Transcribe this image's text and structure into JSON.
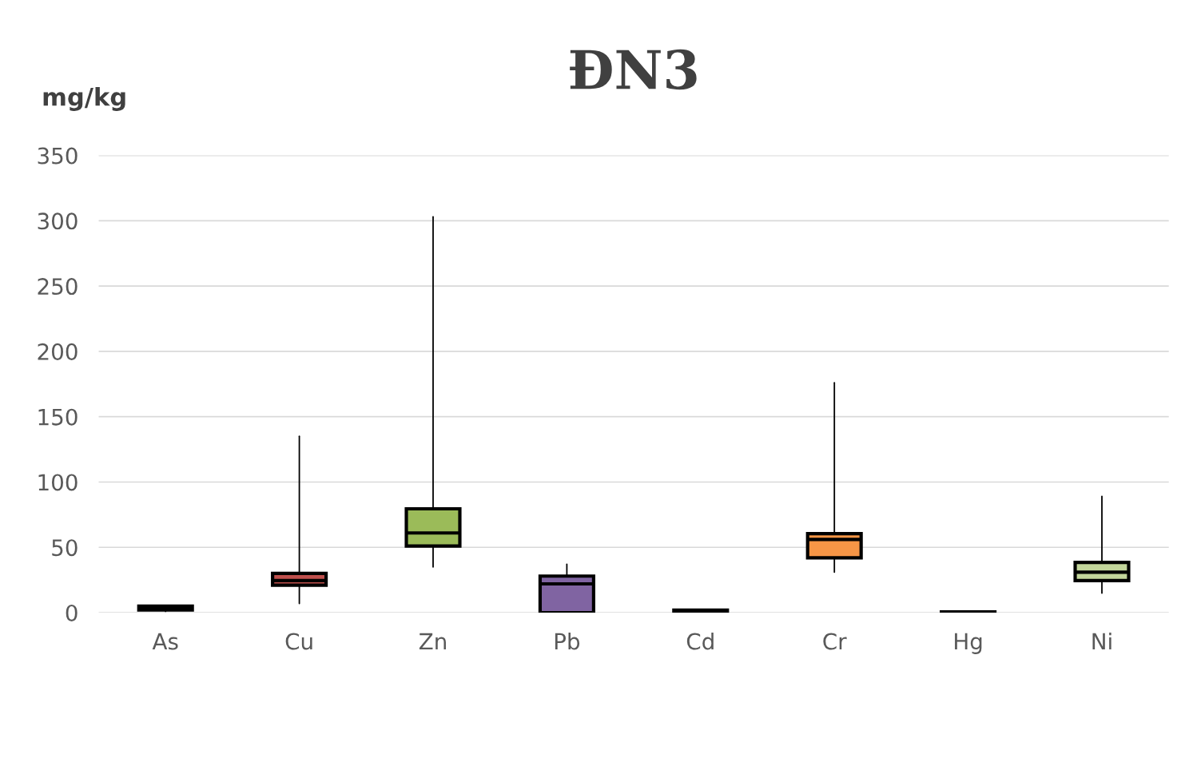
{
  "chart_data": {
    "type": "box",
    "title": "ĐN3",
    "ylabel": "mg/kg",
    "categories": [
      "As",
      "Cu",
      "Zn",
      "Pb",
      "Cd",
      "Cr",
      "Hg",
      "Ni"
    ],
    "colors": [
      "#4f81bd",
      "#c0504d",
      "#9bbb59",
      "#8064a2",
      "#4bacc6",
      "#f79646",
      "#1f497d",
      "#c3d69b"
    ],
    "boxes": [
      {
        "low": 1,
        "q1": 2,
        "median": 3,
        "q3": 5,
        "high": 5
      },
      {
        "low": 7,
        "q1": 21,
        "median": 24.5,
        "q3": 30,
        "high": 135
      },
      {
        "low": 35,
        "q1": 51,
        "median": 61,
        "q3": 79.5,
        "high": 303
      },
      {
        "low": 0,
        "q1": 0,
        "median": 22,
        "q3": 28,
        "high": 37
      },
      {
        "low": 0.5,
        "q1": 0.5,
        "median": 1,
        "q3": 2,
        "high": 2
      },
      {
        "low": 31,
        "q1": 42,
        "median": 56,
        "q3": 60.5,
        "high": 176
      },
      {
        "low": 0.1,
        "q1": 0.2,
        "median": 0.3,
        "q3": 0.5,
        "high": 1
      },
      {
        "low": 15,
        "q1": 24.5,
        "median": 31,
        "q3": 38.5,
        "high": 89
      }
    ],
    "ylim": [
      0,
      350
    ],
    "yticks": [
      0,
      50,
      100,
      150,
      200,
      250,
      300,
      350
    ],
    "grid": "y"
  }
}
